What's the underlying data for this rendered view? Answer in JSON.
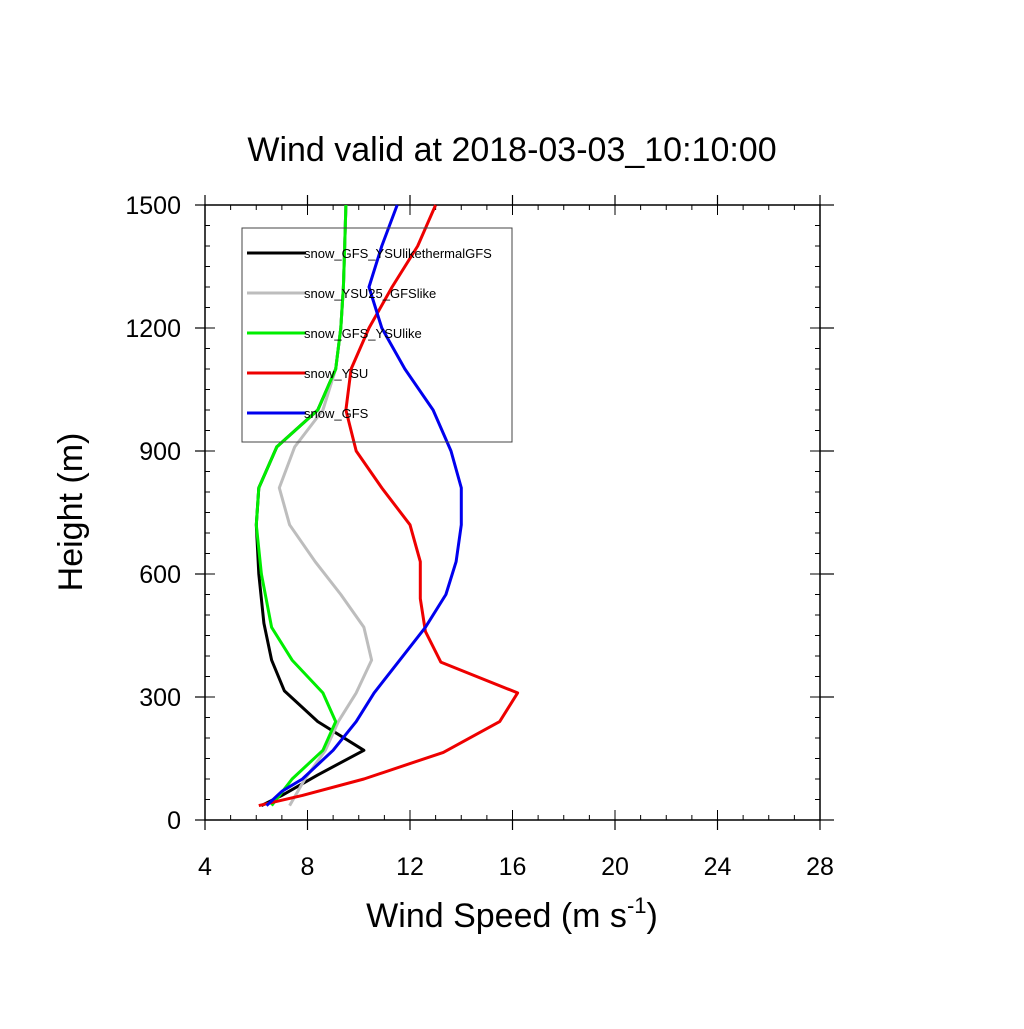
{
  "chart_data": {
    "type": "line",
    "title": "Wind valid at 2018-03-03_10:10:00",
    "xlabel": "Wind Speed (m s",
    "xlabel_superscript": "-1",
    "xlabel_suffix": ")",
    "ylabel": "Height (m)",
    "xlim": [
      4,
      28
    ],
    "ylim": [
      0,
      1500
    ],
    "xticks": [
      4,
      8,
      12,
      16,
      20,
      24,
      28
    ],
    "yticks": [
      0,
      300,
      600,
      900,
      1200,
      1500
    ],
    "xtick_labels": [
      "4",
      "8",
      "12",
      "16",
      "20",
      "24",
      "28"
    ],
    "ytick_labels": [
      "0",
      "300",
      "600",
      "900",
      "1200",
      "1500"
    ],
    "x_minor_step": 1,
    "y_minor_step": 50,
    "legend_position": "top-left",
    "grid": false,
    "series": [
      {
        "name": "snow_GFS_YSUlikethermalGFS",
        "color": "#000000",
        "points": [
          [
            6.2,
            35
          ],
          [
            7.0,
            60
          ],
          [
            8.4,
            110
          ],
          [
            10.2,
            170
          ],
          [
            8.4,
            240
          ],
          [
            7.1,
            315
          ],
          [
            6.6,
            390
          ],
          [
            6.3,
            480
          ],
          [
            6.1,
            600
          ],
          [
            6.0,
            720
          ],
          [
            6.1,
            810
          ],
          [
            6.8,
            910
          ],
          [
            8.4,
            1000
          ],
          [
            9.1,
            1100
          ],
          [
            9.3,
            1200
          ],
          [
            9.4,
            1300
          ],
          [
            9.45,
            1400
          ],
          [
            9.5,
            1500
          ]
        ]
      },
      {
        "name": "snow_YSU25_GFSlike",
        "color": "#bdbdbd",
        "points": [
          [
            7.3,
            35
          ],
          [
            7.9,
            100
          ],
          [
            8.7,
            170
          ],
          [
            9.2,
            240
          ],
          [
            9.9,
            310
          ],
          [
            10.5,
            390
          ],
          [
            10.2,
            470
          ],
          [
            9.3,
            550
          ],
          [
            8.3,
            630
          ],
          [
            7.3,
            720
          ],
          [
            6.9,
            810
          ],
          [
            7.5,
            910
          ],
          [
            8.6,
            1000
          ],
          [
            9.1,
            1100
          ],
          [
            9.3,
            1200
          ],
          [
            9.4,
            1300
          ],
          [
            9.45,
            1400
          ],
          [
            9.5,
            1500
          ]
        ]
      },
      {
        "name": "snow_GFS_YSUlike",
        "color": "#00ee00",
        "points": [
          [
            6.6,
            35
          ],
          [
            7.4,
            100
          ],
          [
            8.6,
            170
          ],
          [
            9.1,
            240
          ],
          [
            8.6,
            310
          ],
          [
            7.4,
            390
          ],
          [
            6.6,
            470
          ],
          [
            6.2,
            600
          ],
          [
            6.0,
            720
          ],
          [
            6.1,
            810
          ],
          [
            6.8,
            910
          ],
          [
            8.4,
            1000
          ],
          [
            9.1,
            1100
          ],
          [
            9.3,
            1200
          ],
          [
            9.4,
            1300
          ],
          [
            9.45,
            1400
          ],
          [
            9.5,
            1500
          ]
        ]
      },
      {
        "name": "snow_YSU",
        "color": "#ee0000",
        "points": [
          [
            6.1,
            35
          ],
          [
            7.8,
            60
          ],
          [
            10.2,
            100
          ],
          [
            13.3,
            165
          ],
          [
            15.5,
            240
          ],
          [
            16.2,
            310
          ],
          [
            13.2,
            385
          ],
          [
            12.6,
            460
          ],
          [
            12.4,
            540
          ],
          [
            12.4,
            630
          ],
          [
            12.0,
            720
          ],
          [
            10.9,
            810
          ],
          [
            9.9,
            900
          ],
          [
            9.5,
            1000
          ],
          [
            9.7,
            1100
          ],
          [
            10.4,
            1200
          ],
          [
            11.3,
            1300
          ],
          [
            12.3,
            1400
          ],
          [
            13.0,
            1500
          ]
        ]
      },
      {
        "name": "snow_GFS",
        "color": "#0000ee",
        "points": [
          [
            6.4,
            35
          ],
          [
            7.0,
            70
          ],
          [
            7.8,
            100
          ],
          [
            9.0,
            170
          ],
          [
            9.9,
            240
          ],
          [
            10.6,
            310
          ],
          [
            11.6,
            390
          ],
          [
            12.6,
            470
          ],
          [
            13.4,
            550
          ],
          [
            13.8,
            630
          ],
          [
            14.0,
            720
          ],
          [
            14.0,
            810
          ],
          [
            13.6,
            900
          ],
          [
            12.9,
            1000
          ],
          [
            11.8,
            1100
          ],
          [
            10.9,
            1200
          ],
          [
            10.4,
            1300
          ],
          [
            10.9,
            1400
          ],
          [
            11.5,
            1500
          ]
        ]
      }
    ]
  }
}
